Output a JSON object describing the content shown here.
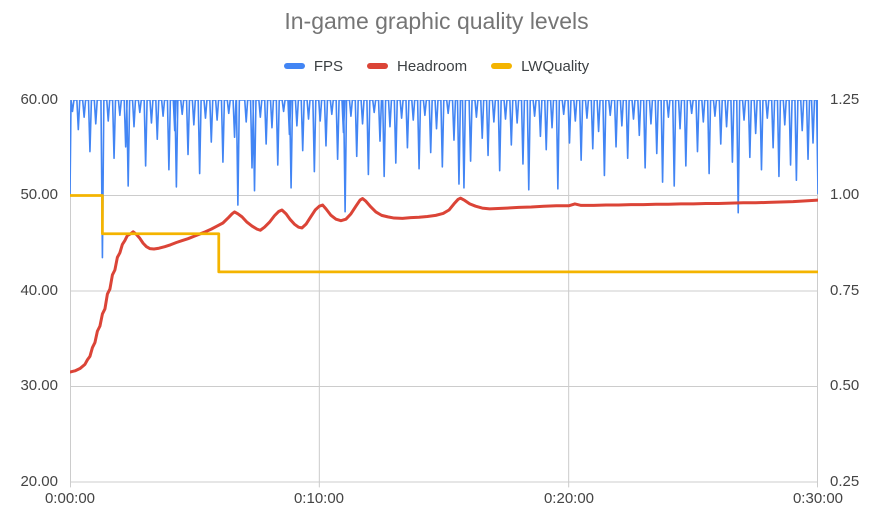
{
  "title": "In-game graphic quality levels",
  "colors": {
    "background": "#ffffff",
    "title": "#757575",
    "tick_labels": "#444444",
    "legend_labels": "#3c4043",
    "grid": "#cccccc",
    "fps": "#4285F4",
    "headroom": "#DB4437",
    "lwquality": "#F4B400"
  },
  "chart_data": {
    "type": "line",
    "title": "In-game graphic quality levels",
    "legend_position": "top",
    "grid": true,
    "x_axis": {
      "unit": "h:mm:ss",
      "min_seconds": 0,
      "max_seconds": 1800,
      "ticks_seconds": [
        0,
        600,
        1200,
        1800
      ],
      "tick_labels": [
        "0:00:00",
        "0:10:00",
        "0:20:00",
        "0:30:00"
      ]
    },
    "y_axis_left": {
      "min": 20,
      "max": 60,
      "ticks": [
        60,
        50,
        40,
        30,
        20
      ],
      "tick_labels": [
        "60.00",
        "50.00",
        "40.00",
        "30.00",
        "20.00"
      ]
    },
    "y_axis_right": {
      "min": 0.25,
      "max": 1.25,
      "ticks": [
        1.25,
        1.0,
        0.75,
        0.5,
        0.25
      ],
      "tick_labels": [
        "1.25",
        "1.00",
        "0.75",
        "0.50",
        "0.25"
      ]
    },
    "series": [
      {
        "name": "FPS",
        "axis": "left",
        "color": "#4285F4",
        "style": "baseline_with_dips",
        "baseline": 60,
        "start": [
          0,
          50
        ],
        "dip_halfwidth_seconds": 3.5,
        "dips": [
          [
            6,
            58.8
          ],
          [
            20,
            56.9
          ],
          [
            34,
            58.2
          ],
          [
            48,
            54.6
          ],
          [
            62,
            57.5
          ],
          [
            78,
            43.5
          ],
          [
            92,
            57.8
          ],
          [
            106,
            53.9
          ],
          [
            120,
            58.4
          ],
          [
            134,
            55.1
          ],
          [
            140,
            51
          ],
          [
            154,
            57.2
          ],
          [
            168,
            58.7
          ],
          [
            182,
            53.1
          ],
          [
            196,
            57.6
          ],
          [
            210,
            55.9
          ],
          [
            224,
            58.3
          ],
          [
            238,
            52.7
          ],
          [
            252,
            56.8
          ],
          [
            256,
            50.9
          ],
          [
            270,
            58.5
          ],
          [
            284,
            54.3
          ],
          [
            298,
            57.4
          ],
          [
            312,
            52.3
          ],
          [
            326,
            58.1
          ],
          [
            340,
            55.6
          ],
          [
            354,
            57.9
          ],
          [
            368,
            53.5
          ],
          [
            382,
            58.6
          ],
          [
            396,
            56.1
          ],
          [
            404,
            49
          ],
          [
            424,
            57.7
          ],
          [
            438,
            52.9
          ],
          [
            444,
            50.5
          ],
          [
            458,
            58.2
          ],
          [
            472,
            55.4
          ],
          [
            486,
            57.1
          ],
          [
            500,
            53.2
          ],
          [
            514,
            58.8
          ],
          [
            528,
            56.4
          ],
          [
            532,
            50.8
          ],
          [
            546,
            57.3
          ],
          [
            560,
            54.7
          ],
          [
            574,
            58
          ],
          [
            588,
            52.5
          ],
          [
            602,
            57.8
          ],
          [
            616,
            55.2
          ],
          [
            630,
            58.5
          ],
          [
            644,
            53.8
          ],
          [
            658,
            56.6
          ],
          [
            662,
            48.3
          ],
          [
            676,
            58.3
          ],
          [
            690,
            54.1
          ],
          [
            704,
            57.5
          ],
          [
            718,
            52.2
          ],
          [
            732,
            58.7
          ],
          [
            746,
            55.7
          ],
          [
            756,
            52
          ],
          [
            770,
            57.2
          ],
          [
            784,
            53.4
          ],
          [
            798,
            58.1
          ],
          [
            812,
            55
          ],
          [
            826,
            57.9
          ],
          [
            840,
            52.8
          ],
          [
            854,
            58.4
          ],
          [
            868,
            54.5
          ],
          [
            882,
            57
          ],
          [
            896,
            53
          ],
          [
            910,
            58.6
          ],
          [
            924,
            55.8
          ],
          [
            936,
            51.2
          ],
          [
            948,
            50.8
          ],
          [
            964,
            53.6
          ],
          [
            978,
            58.2
          ],
          [
            992,
            56
          ],
          [
            1006,
            54.2
          ],
          [
            1020,
            57.7
          ],
          [
            1034,
            52.6
          ],
          [
            1048,
            58
          ],
          [
            1062,
            55.3
          ],
          [
            1076,
            57.6
          ],
          [
            1090,
            53.3
          ],
          [
            1104,
            50.6
          ],
          [
            1118,
            58.3
          ],
          [
            1132,
            56.2
          ],
          [
            1146,
            54.8
          ],
          [
            1160,
            57.1
          ],
          [
            1174,
            50.7
          ],
          [
            1188,
            58.5
          ],
          [
            1202,
            55.5
          ],
          [
            1216,
            57.8
          ],
          [
            1230,
            53.7
          ],
          [
            1244,
            58.1
          ],
          [
            1258,
            54.9
          ],
          [
            1272,
            56.7
          ],
          [
            1286,
            52.1
          ],
          [
            1300,
            58.4
          ],
          [
            1314,
            55.1
          ],
          [
            1328,
            57.3
          ],
          [
            1342,
            53.9
          ],
          [
            1356,
            58
          ],
          [
            1370,
            56.3
          ],
          [
            1384,
            52.9
          ],
          [
            1398,
            57.5
          ],
          [
            1412,
            54.4
          ],
          [
            1426,
            51.4
          ],
          [
            1440,
            58.2
          ],
          [
            1454,
            51
          ],
          [
            1468,
            57
          ],
          [
            1482,
            53.1
          ],
          [
            1496,
            58.6
          ],
          [
            1510,
            54.6
          ],
          [
            1524,
            57.7
          ],
          [
            1538,
            52.3
          ],
          [
            1552,
            58.3
          ],
          [
            1566,
            55.4
          ],
          [
            1580,
            57.2
          ],
          [
            1594,
            53.5
          ],
          [
            1608,
            48.2
          ],
          [
            1622,
            57.9
          ],
          [
            1636,
            54
          ],
          [
            1650,
            56.5
          ],
          [
            1664,
            52.7
          ],
          [
            1678,
            58.1
          ],
          [
            1692,
            55
          ],
          [
            1706,
            52
          ],
          [
            1720,
            57.4
          ],
          [
            1734,
            53.2
          ],
          [
            1748,
            51.6
          ],
          [
            1762,
            56.8
          ],
          [
            1776,
            53.8
          ],
          [
            1788,
            55.5
          ],
          [
            1800,
            50.2
          ]
        ]
      },
      {
        "name": "Headroom",
        "axis": "right",
        "color": "#DB4437",
        "style": "line",
        "points": [
          [
            0,
            0.538
          ],
          [
            12,
            0.541
          ],
          [
            24,
            0.547
          ],
          [
            36,
            0.558
          ],
          [
            42,
            0.57
          ],
          [
            48,
            0.579
          ],
          [
            54,
            0.602
          ],
          [
            60,
            0.615
          ],
          [
            66,
            0.645
          ],
          [
            72,
            0.658
          ],
          [
            78,
            0.69
          ],
          [
            84,
            0.703
          ],
          [
            90,
            0.742
          ],
          [
            96,
            0.755
          ],
          [
            102,
            0.792
          ],
          [
            108,
            0.805
          ],
          [
            114,
            0.838
          ],
          [
            120,
            0.85
          ],
          [
            126,
            0.872
          ],
          [
            132,
            0.882
          ],
          [
            138,
            0.895
          ],
          [
            146,
            0.9
          ],
          [
            152,
            0.905
          ],
          [
            160,
            0.898
          ],
          [
            168,
            0.888
          ],
          [
            176,
            0.875
          ],
          [
            184,
            0.866
          ],
          [
            192,
            0.861
          ],
          [
            202,
            0.86
          ],
          [
            214,
            0.862
          ],
          [
            228,
            0.866
          ],
          [
            242,
            0.871
          ],
          [
            256,
            0.877
          ],
          [
            270,
            0.882
          ],
          [
            284,
            0.887
          ],
          [
            298,
            0.893
          ],
          [
            312,
            0.899
          ],
          [
            326,
            0.905
          ],
          [
            340,
            0.912
          ],
          [
            354,
            0.92
          ],
          [
            368,
            0.928
          ],
          [
            382,
            0.943
          ],
          [
            390,
            0.952
          ],
          [
            396,
            0.957
          ],
          [
            404,
            0.952
          ],
          [
            414,
            0.944
          ],
          [
            426,
            0.93
          ],
          [
            438,
            0.92
          ],
          [
            450,
            0.912
          ],
          [
            458,
            0.909
          ],
          [
            468,
            0.917
          ],
          [
            480,
            0.93
          ],
          [
            492,
            0.947
          ],
          [
            502,
            0.958
          ],
          [
            510,
            0.962
          ],
          [
            520,
            0.952
          ],
          [
            530,
            0.937
          ],
          [
            540,
            0.925
          ],
          [
            550,
            0.917
          ],
          [
            558,
            0.915
          ],
          [
            568,
            0.925
          ],
          [
            578,
            0.942
          ],
          [
            590,
            0.962
          ],
          [
            600,
            0.972
          ],
          [
            608,
            0.975
          ],
          [
            616,
            0.965
          ],
          [
            628,
            0.948
          ],
          [
            640,
            0.938
          ],
          [
            652,
            0.934
          ],
          [
            664,
            0.938
          ],
          [
            676,
            0.952
          ],
          [
            688,
            0.972
          ],
          [
            698,
            0.988
          ],
          [
            704,
            0.992
          ],
          [
            712,
            0.985
          ],
          [
            724,
            0.97
          ],
          [
            736,
            0.957
          ],
          [
            750,
            0.948
          ],
          [
            765,
            0.944
          ],
          [
            780,
            0.941
          ],
          [
            800,
            0.94
          ],
          [
            820,
            0.942
          ],
          [
            840,
            0.943
          ],
          [
            860,
            0.945
          ],
          [
            880,
            0.948
          ],
          [
            898,
            0.953
          ],
          [
            912,
            0.962
          ],
          [
            924,
            0.978
          ],
          [
            934,
            0.99
          ],
          [
            940,
            0.993
          ],
          [
            950,
            0.987
          ],
          [
            962,
            0.978
          ],
          [
            976,
            0.972
          ],
          [
            992,
            0.967
          ],
          [
            1010,
            0.965
          ],
          [
            1030,
            0.966
          ],
          [
            1050,
            0.967
          ],
          [
            1080,
            0.969
          ],
          [
            1110,
            0.97
          ],
          [
            1140,
            0.972
          ],
          [
            1170,
            0.973
          ],
          [
            1200,
            0.973
          ],
          [
            1215,
            0.978
          ],
          [
            1230,
            0.974
          ],
          [
            1260,
            0.974
          ],
          [
            1290,
            0.975
          ],
          [
            1320,
            0.975
          ],
          [
            1350,
            0.976
          ],
          [
            1380,
            0.976
          ],
          [
            1410,
            0.977
          ],
          [
            1440,
            0.977
          ],
          [
            1470,
            0.978
          ],
          [
            1500,
            0.978
          ],
          [
            1530,
            0.979
          ],
          [
            1560,
            0.979
          ],
          [
            1590,
            0.98
          ],
          [
            1620,
            0.981
          ],
          [
            1650,
            0.981
          ],
          [
            1680,
            0.982
          ],
          [
            1710,
            0.983
          ],
          [
            1740,
            0.984
          ],
          [
            1770,
            0.986
          ],
          [
            1800,
            0.988
          ]
        ]
      },
      {
        "name": "LWQuality",
        "axis": "right",
        "color": "#F4B400",
        "style": "step",
        "points": [
          [
            0,
            1.0
          ],
          [
            78,
            0.9
          ],
          [
            358,
            0.8
          ]
        ],
        "end_seconds": 1800
      }
    ]
  }
}
